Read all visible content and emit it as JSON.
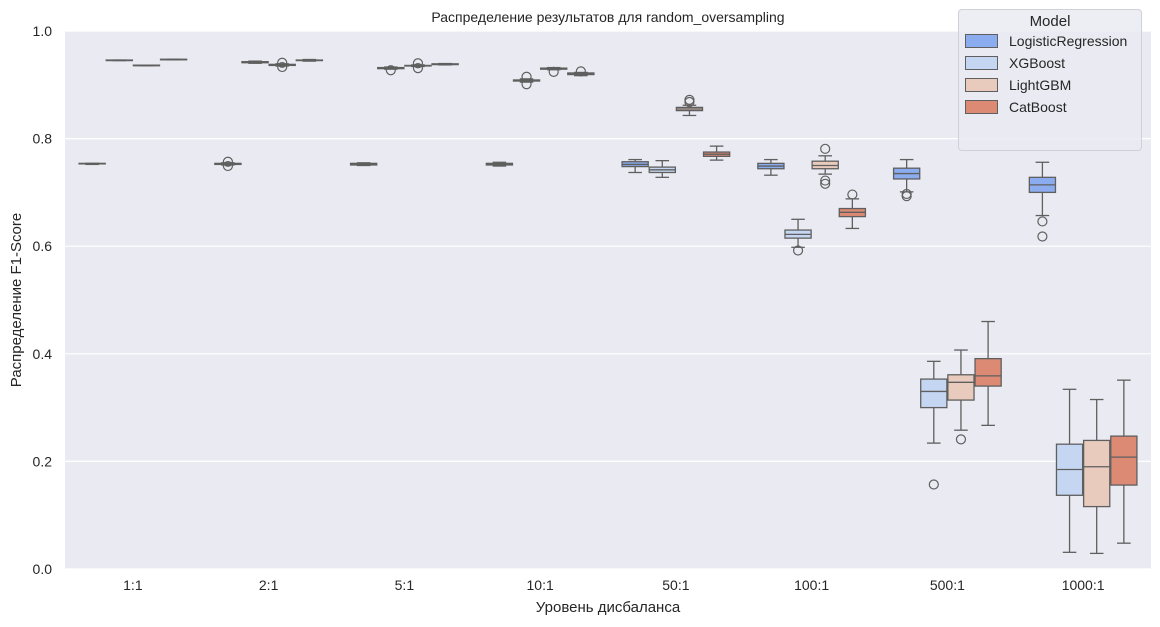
{
  "chart_data": {
    "type": "box",
    "title": "Распределение результатов для random_oversampling",
    "xlabel": "Уровень дисбаланса",
    "ylabel": "Распределение F1-Score",
    "ylim": [
      0,
      1.0
    ],
    "yticks": [
      "0.0",
      "0.2",
      "0.4",
      "0.6",
      "0.8",
      "1.0"
    ],
    "grid": true,
    "legend_position": "top-right",
    "legend_title": "Model",
    "categories": [
      "1:1",
      "2:1",
      "5:1",
      "10:1",
      "50:1",
      "100:1",
      "500:1",
      "1000:1"
    ],
    "series": [
      {
        "name": "LogisticRegression",
        "color": "#8badef",
        "boxes": [
          {
            "min": 0.752,
            "q1": 0.753,
            "med": 0.753,
            "q3": 0.754,
            "max": 0.754,
            "outliers": []
          },
          {
            "min": 0.751,
            "q1": 0.752,
            "med": 0.753,
            "q3": 0.754,
            "max": 0.755,
            "outliers": [
              0.749,
              0.757
            ]
          },
          {
            "min": 0.75,
            "q1": 0.751,
            "med": 0.752,
            "q3": 0.754,
            "max": 0.755,
            "outliers": []
          },
          {
            "min": 0.749,
            "q1": 0.751,
            "med": 0.752,
            "q3": 0.754,
            "max": 0.756,
            "outliers": []
          },
          {
            "min": 0.737,
            "q1": 0.748,
            "med": 0.752,
            "q3": 0.757,
            "max": 0.761,
            "outliers": []
          },
          {
            "min": 0.732,
            "q1": 0.744,
            "med": 0.749,
            "q3": 0.754,
            "max": 0.761,
            "outliers": []
          },
          {
            "min": 0.701,
            "q1": 0.725,
            "med": 0.735,
            "q3": 0.745,
            "max": 0.761,
            "outliers": [
              0.697,
              0.693
            ]
          },
          {
            "min": 0.657,
            "q1": 0.7,
            "med": 0.714,
            "q3": 0.728,
            "max": 0.756,
            "outliers": [
              0.646,
              0.618
            ]
          }
        ]
      },
      {
        "name": "XGBoost",
        "color": "#c5d6f2",
        "boxes": [
          {
            "min": 0.945,
            "q1": 0.945,
            "med": 0.9455,
            "q3": 0.946,
            "max": 0.946,
            "outliers": []
          },
          {
            "min": 0.94,
            "q1": 0.941,
            "med": 0.942,
            "q3": 0.943,
            "max": 0.944,
            "outliers": []
          },
          {
            "min": 0.929,
            "q1": 0.93,
            "med": 0.931,
            "q3": 0.932,
            "max": 0.933,
            "outliers": [
              0.927
            ]
          },
          {
            "min": 0.905,
            "q1": 0.907,
            "med": 0.908,
            "q3": 0.909,
            "max": 0.911,
            "outliers": [
              0.915,
              0.901
            ]
          },
          {
            "min": 0.728,
            "q1": 0.737,
            "med": 0.742,
            "q3": 0.747,
            "max": 0.759,
            "outliers": []
          },
          {
            "min": 0.598,
            "q1": 0.615,
            "med": 0.622,
            "q3": 0.63,
            "max": 0.65,
            "outliers": [
              0.592
            ]
          },
          {
            "min": 0.234,
            "q1": 0.3,
            "med": 0.33,
            "q3": 0.353,
            "max": 0.386,
            "outliers": [
              0.157
            ]
          },
          {
            "min": 0.031,
            "q1": 0.137,
            "med": 0.185,
            "q3": 0.232,
            "max": 0.334,
            "outliers": []
          }
        ]
      },
      {
        "name": "LightGBM",
        "color": "#e8cbbd",
        "boxes": [
          {
            "min": 0.9355,
            "q1": 0.9355,
            "med": 0.936,
            "q3": 0.9365,
            "max": 0.9365,
            "outliers": []
          },
          {
            "min": 0.935,
            "q1": 0.936,
            "med": 0.937,
            "q3": 0.938,
            "max": 0.939,
            "outliers": [
              0.941,
              0.933
            ]
          },
          {
            "min": 0.934,
            "q1": 0.935,
            "med": 0.9355,
            "q3": 0.936,
            "max": 0.937,
            "outliers": [
              0.94,
              0.931
            ]
          },
          {
            "min": 0.928,
            "q1": 0.929,
            "med": 0.93,
            "q3": 0.931,
            "max": 0.932,
            "outliers": [
              0.924
            ]
          },
          {
            "min": 0.843,
            "q1": 0.852,
            "med": 0.855,
            "q3": 0.858,
            "max": 0.862,
            "outliers": [
              0.868,
              0.872
            ]
          },
          {
            "min": 0.734,
            "q1": 0.744,
            "med": 0.75,
            "q3": 0.758,
            "max": 0.768,
            "outliers": [
              0.781,
              0.722,
              0.716
            ]
          },
          {
            "min": 0.258,
            "q1": 0.314,
            "med": 0.347,
            "q3": 0.361,
            "max": 0.407,
            "outliers": [
              0.241
            ]
          },
          {
            "min": 0.029,
            "q1": 0.116,
            "med": 0.19,
            "q3": 0.239,
            "max": 0.315,
            "outliers": []
          }
        ]
      },
      {
        "name": "CatBoost",
        "color": "#dc8a74",
        "boxes": [
          {
            "min": 0.9465,
            "q1": 0.9465,
            "med": 0.947,
            "q3": 0.9475,
            "max": 0.9475,
            "outliers": []
          },
          {
            "min": 0.944,
            "q1": 0.945,
            "med": 0.9455,
            "q3": 0.946,
            "max": 0.947,
            "outliers": []
          },
          {
            "min": 0.937,
            "q1": 0.9375,
            "med": 0.938,
            "q3": 0.939,
            "max": 0.9395,
            "outliers": []
          },
          {
            "min": 0.917,
            "q1": 0.919,
            "med": 0.9205,
            "q3": 0.922,
            "max": 0.923,
            "outliers": [
              0.925
            ]
          },
          {
            "min": 0.76,
            "q1": 0.767,
            "med": 0.771,
            "q3": 0.775,
            "max": 0.786,
            "outliers": []
          },
          {
            "min": 0.633,
            "q1": 0.655,
            "med": 0.663,
            "q3": 0.67,
            "max": 0.688,
            "outliers": [
              0.696
            ]
          },
          {
            "min": 0.267,
            "q1": 0.34,
            "med": 0.359,
            "q3": 0.391,
            "max": 0.46,
            "outliers": []
          },
          {
            "min": 0.048,
            "q1": 0.156,
            "med": 0.208,
            "q3": 0.247,
            "max": 0.351,
            "outliers": []
          }
        ]
      }
    ]
  }
}
